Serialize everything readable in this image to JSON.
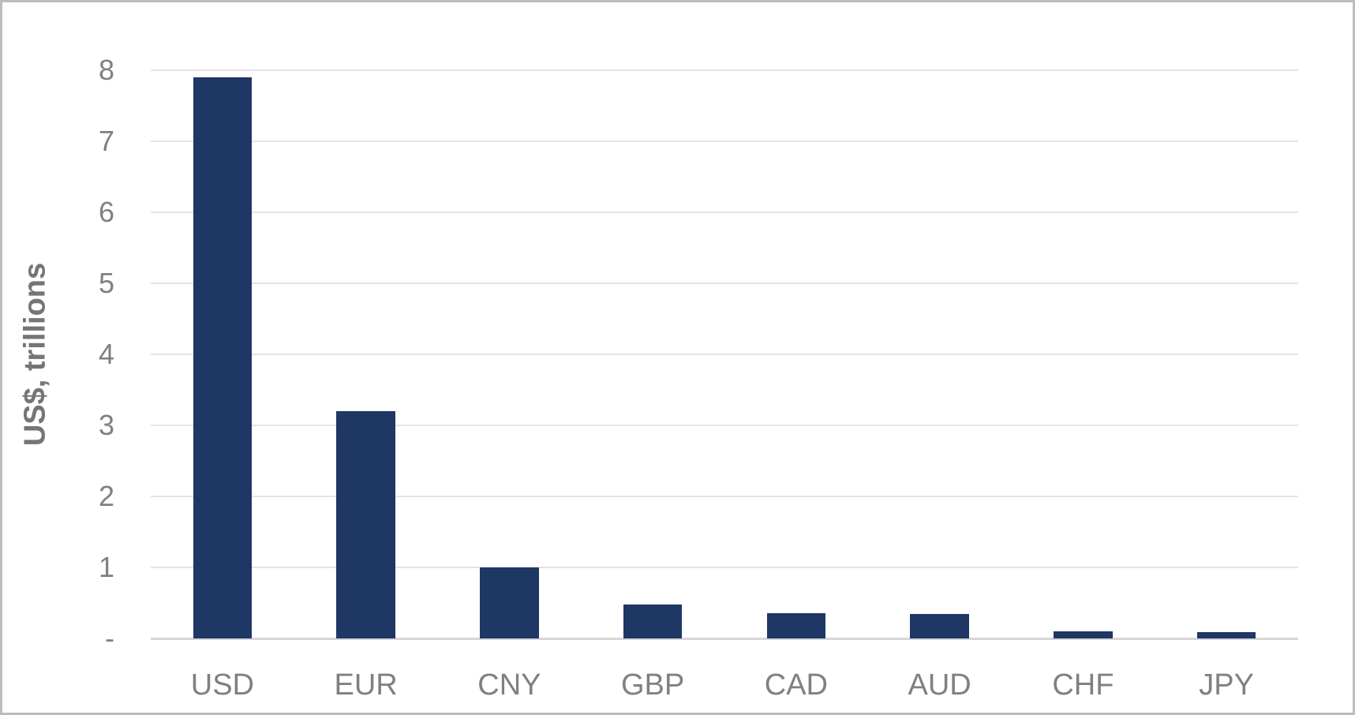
{
  "chart_data": {
    "type": "bar",
    "title": "",
    "xlabel": "",
    "ylabel": "US$, trillions",
    "categories": [
      "USD",
      "EUR",
      "CNY",
      "GBP",
      "CAD",
      "AUD",
      "CHF",
      "JPY"
    ],
    "values": [
      7.9,
      3.2,
      1.0,
      0.48,
      0.36,
      0.35,
      0.1,
      0.09
    ],
    "ylim": [
      0,
      8
    ],
    "y_ticks": [
      {
        "label": "8",
        "value": 8
      },
      {
        "label": "7",
        "value": 7
      },
      {
        "label": "6",
        "value": 6
      },
      {
        "label": "5",
        "value": 5
      },
      {
        "label": "4",
        "value": 4
      },
      {
        "label": "3",
        "value": 3
      },
      {
        "label": "2",
        "value": 2
      },
      {
        "label": "1",
        "value": 1
      },
      {
        "label": "-",
        "value": 0
      }
    ],
    "grid": "horizontal",
    "legend": "none",
    "colors": {
      "bar": "#1E3764",
      "gridline": "#E4E4E4",
      "axis_line": "#D6D6D6",
      "tick_text": "#808080",
      "category_text": "#808080",
      "axis_title_text": "#757575",
      "border": "#BDBDBD",
      "background": "#FFFFFF"
    }
  }
}
